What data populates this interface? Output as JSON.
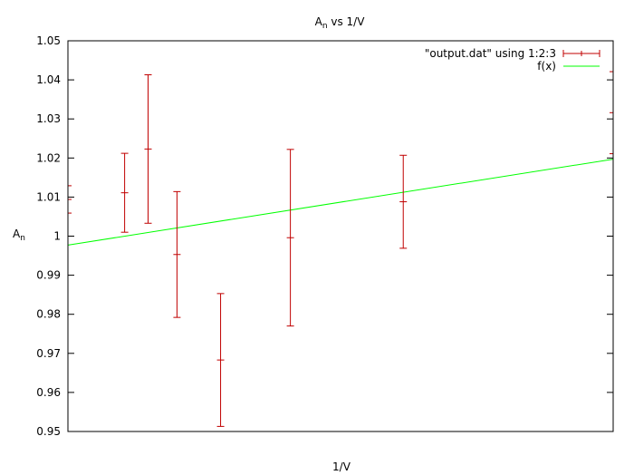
{
  "chart_data": {
    "type": "scatter",
    "title": {
      "base": "A",
      "sub": "n",
      "rest": " vs 1/V"
    },
    "xlabel": "1/V",
    "ylabel": {
      "base": "A",
      "sub": "n"
    },
    "ylim": [
      0.95,
      1.05
    ],
    "xlim": [
      0,
      1
    ],
    "yticks": [
      "0.95",
      "0.96",
      "0.97",
      "0.98",
      "0.99",
      "1",
      "1.01",
      "1.02",
      "1.03",
      "1.04",
      "1.05"
    ],
    "grid": false,
    "legend_position": "top-right",
    "series": [
      {
        "name": "\"output.dat\" using 1:2:3",
        "kind": "errorbars",
        "color": "#c00000",
        "points": [
          {
            "x": 0.0,
            "y": 1.0094,
            "err": 0.0035
          },
          {
            "x": 0.104,
            "y": 1.0111,
            "err": 0.0101
          },
          {
            "x": 0.147,
            "y": 1.0223,
            "err": 0.019
          },
          {
            "x": 0.2,
            "y": 0.9953,
            "err": 0.0161
          },
          {
            "x": 0.28,
            "y": 0.9683,
            "err": 0.017
          },
          {
            "x": 0.408,
            "y": 0.9996,
            "err": 0.0226
          },
          {
            "x": 0.615,
            "y": 1.0088,
            "err": 0.0119
          },
          {
            "x": 1.0,
            "y": 1.0316,
            "err": 0.0105
          }
        ]
      },
      {
        "name": "f(x)",
        "kind": "line",
        "color": "#00ff00",
        "x": [
          0,
          1
        ],
        "y": [
          0.9977,
          1.0197
        ]
      }
    ]
  }
}
